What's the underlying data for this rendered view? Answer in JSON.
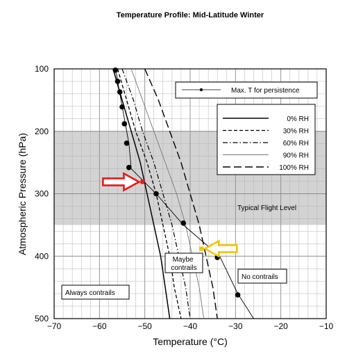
{
  "chart_data": {
    "type": "line",
    "title": "Temperature Profile: Mid-Latitude Winter",
    "xlabel": "Temperature (°C)",
    "ylabel": "Atmospheric Pressure (hPa)",
    "xlim": [
      -70,
      -10
    ],
    "ylim": [
      500,
      100
    ],
    "y_axis_inverted": true,
    "xticks": [
      "−70",
      "−60",
      "−50",
      "−40",
      "−30",
      "−20",
      "−10"
    ],
    "xtick_values": [
      -70,
      -60,
      -50,
      -40,
      -30,
      -20,
      -10
    ],
    "yticks": [
      "100",
      "200",
      "300",
      "400",
      "500"
    ],
    "ytick_values": [
      100,
      200,
      300,
      400,
      500
    ],
    "grid": true,
    "shaded_band": {
      "label": "Typical Flight Level",
      "p_from": 200,
      "p_to": 350
    },
    "series": [
      {
        "name": "0% RH",
        "dash": "solid",
        "color": "#000000",
        "points": [
          [
            -57,
            100
          ],
          [
            -55,
            150
          ],
          [
            -53,
            200
          ],
          [
            -51,
            250
          ],
          [
            -49.5,
            300
          ],
          [
            -48,
            350
          ],
          [
            -46.5,
            400
          ],
          [
            -45.5,
            450
          ],
          [
            -44.5,
            500
          ]
        ]
      },
      {
        "name": "30% RH",
        "dash": "short",
        "color": "#000000",
        "points": [
          [
            -56,
            100
          ],
          [
            -54,
            150
          ],
          [
            -52,
            200
          ],
          [
            -49.5,
            250
          ],
          [
            -47.5,
            300
          ],
          [
            -46,
            350
          ],
          [
            -44.5,
            400
          ],
          [
            -43.5,
            450
          ],
          [
            -42,
            500
          ]
        ]
      },
      {
        "name": "60% RH",
        "dash": "dashdot",
        "color": "#000000",
        "points": [
          [
            -55,
            100
          ],
          [
            -52.5,
            150
          ],
          [
            -50.5,
            200
          ],
          [
            -48,
            250
          ],
          [
            -46,
            300
          ],
          [
            -44,
            350
          ],
          [
            -42.5,
            400
          ],
          [
            -41,
            450
          ],
          [
            -40,
            500
          ]
        ]
      },
      {
        "name": "90% RH",
        "dash": "solid-thin",
        "color": "#777777",
        "points": [
          [
            -53,
            100
          ],
          [
            -50.5,
            150
          ],
          [
            -48,
            200
          ],
          [
            -45.5,
            250
          ],
          [
            -43,
            300
          ],
          [
            -41,
            350
          ],
          [
            -39.5,
            400
          ],
          [
            -38,
            450
          ],
          [
            -37,
            500
          ]
        ]
      },
      {
        "name": "100% RH",
        "dash": "long",
        "color": "#000000",
        "points": [
          [
            -50,
            100
          ],
          [
            -47,
            150
          ],
          [
            -44.5,
            200
          ],
          [
            -42,
            250
          ],
          [
            -40,
            300
          ],
          [
            -38,
            350
          ],
          [
            -36.5,
            400
          ],
          [
            -35,
            450
          ],
          [
            -34,
            500
          ]
        ]
      },
      {
        "name": "Max. T for persistence",
        "dash": "solid-thin",
        "color": "#000000",
        "points": [
          [
            -56.5,
            100
          ],
          [
            -56,
            120
          ],
          [
            -55.5,
            140
          ],
          [
            -55,
            160
          ],
          [
            -54.5,
            180
          ],
          [
            -53.5,
            220
          ],
          [
            -53,
            260
          ],
          [
            -47.5,
            300
          ],
          [
            -41.5,
            350
          ],
          [
            -33.5,
            400
          ],
          [
            -29.5,
            460
          ],
          [
            -26,
            500
          ]
        ]
      }
    ],
    "temperature_profile_markers": [
      [
        -56.5,
        102
      ],
      [
        -56,
        120
      ],
      [
        -55.5,
        137
      ],
      [
        -55,
        161
      ],
      [
        -54.5,
        188
      ],
      [
        -54,
        219
      ],
      [
        -53.5,
        258
      ],
      [
        -47.5,
        300
      ],
      [
        -41.5,
        347
      ],
      [
        -34,
        402
      ],
      [
        -29.5,
        462
      ]
    ],
    "highlight_points": [
      {
        "x": -50.5,
        "y": 281,
        "color": "#e31b1b"
      },
      {
        "x": -37.5,
        "y": 388,
        "color": "#f5c400"
      }
    ],
    "arrows": [
      {
        "color": "#e31b1b",
        "direction": "right",
        "target": [
          -50.5,
          281
        ]
      },
      {
        "color": "#f5c400",
        "direction": "left",
        "target": [
          -37.5,
          388
        ]
      }
    ],
    "legend": {
      "placement": "top-right",
      "entries": [
        "0% RH",
        "30% RH",
        "60% RH",
        "90% RH",
        "100% RH"
      ],
      "persistence_label": "Max. T for persistence"
    },
    "annotations": [
      "Typical Flight Level",
      "Maybe contrails",
      "No contrails",
      "Always contrails"
    ]
  }
}
